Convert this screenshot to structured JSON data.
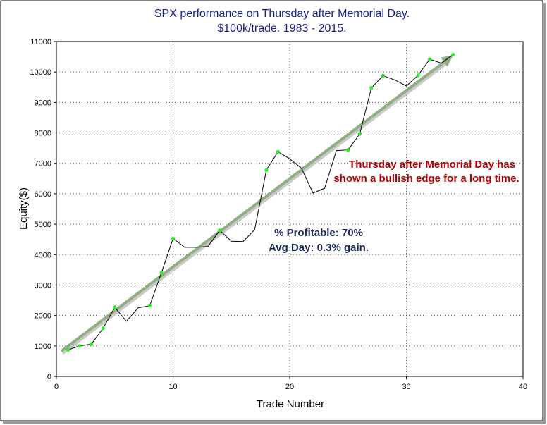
{
  "chart_data": {
    "type": "line",
    "title": "SPX performance on Thursday after Memorial Day.",
    "subtitle": "$100k/trade. 1983 - 2015.",
    "xlabel": "Trade Number",
    "ylabel": "Equity($)",
    "xlim": [
      0,
      40
    ],
    "ylim": [
      0,
      11000
    ],
    "xticks": [
      0,
      10,
      20,
      30,
      40
    ],
    "yticks": [
      0,
      1000,
      2000,
      3000,
      4000,
      5000,
      6000,
      7000,
      8000,
      9000,
      10000,
      11000
    ],
    "grid": true,
    "series": [
      {
        "x": [
          1,
          2,
          3,
          4,
          5,
          6,
          7,
          8,
          9,
          10,
          11,
          12,
          13,
          14,
          15,
          16,
          17,
          18,
          19,
          20,
          21,
          22,
          23,
          24,
          25,
          26,
          27,
          28,
          29,
          30,
          31,
          32,
          33,
          34
        ],
        "y": [
          870,
          1000,
          1060,
          1580,
          2270,
          1810,
          2250,
          2320,
          3400,
          4530,
          4240,
          4240,
          4270,
          4800,
          4440,
          4430,
          4820,
          6780,
          7380,
          7150,
          6840,
          6020,
          6180,
          7420,
          7440,
          7960,
          9480,
          9880,
          9740,
          9540,
          9890,
          10420,
          10290,
          10570
        ],
        "markers": [
          1,
          2,
          3,
          4,
          5,
          8,
          9,
          10,
          14,
          18,
          19,
          25,
          26,
          27,
          28,
          31,
          32,
          34
        ],
        "line_color": "#000000",
        "marker_color": "#22ee22"
      }
    ],
    "trend_arrow": {
      "x": [
        0.5,
        34
      ],
      "y": [
        850,
        10550
      ],
      "color": "#8fae82"
    },
    "annotations": [
      {
        "text": "Thursday after Memorial Day has",
        "color": "#b00000"
      },
      {
        "text": "shown a bullish edge for a long time.",
        "color": "#b00000"
      },
      {
        "text": "% Profitable: 70%",
        "color": "#1c2a55"
      },
      {
        "text": "Avg Day: 0.3% gain.",
        "color": "#1c2a55"
      }
    ]
  }
}
